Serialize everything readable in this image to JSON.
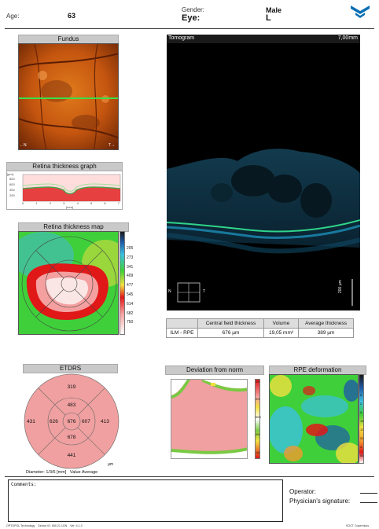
{
  "header": {
    "age_label": "Age:",
    "age_value": "63",
    "gender_label": "Gender:",
    "gender_value": "Male",
    "eye_label": "Eye:",
    "eye_value": "L",
    "logo_icon": "optovue-logo-icon",
    "brand_color": "#0a6fb3"
  },
  "fundus": {
    "title": "Fundus",
    "left_marker": "N",
    "right_marker": "T"
  },
  "tomogram": {
    "title": "Tomogram",
    "length": "7,00mm",
    "left_marker": "N",
    "right_marker": "T",
    "scale_bar": "200 µm"
  },
  "thickness_graph": {
    "title": "Retina thickness graph",
    "ylabel": "[µm]",
    "xlabel": "[mm]",
    "yticks": [
      "800",
      "600",
      "400",
      "200"
    ],
    "xticks": [
      "0",
      "1",
      "2",
      "3",
      "4",
      "5",
      "6",
      "7"
    ]
  },
  "thickness_map": {
    "title": "Retina thickness map",
    "scale_values": [
      "205",
      "273",
      "341",
      "409",
      "477",
      "545",
      "614",
      "682",
      "750"
    ]
  },
  "measurements": {
    "columns": [
      "",
      "Central field thickness",
      "Volume",
      "Average thickness"
    ],
    "rows": [
      {
        "label": "ILM - RPE",
        "central": "676 µm",
        "volume": "19,05 mm³",
        "average": "389 µm"
      }
    ]
  },
  "etdrs": {
    "title": "ETDRS",
    "values": {
      "outer_superior": "319",
      "outer_nasal": "431",
      "outer_temporal": "413",
      "outer_inferior": "441",
      "inner_superior": "483",
      "inner_nasal": "626",
      "inner_temporal": "607",
      "inner_inferior": "678",
      "center": "676"
    },
    "unit": "µm",
    "caption": "Diameter: 1/3/6 [mm]   Value Average",
    "fill_color": "#f0a0a0"
  },
  "deviation": {
    "title": "Deviation from norm",
    "scale_values": [
      "1%",
      "",
      "4%",
      "",
      "80%",
      "",
      "4%",
      "",
      "1%"
    ]
  },
  "rpe": {
    "title": "RPE deformation",
    "scale_values": [
      "",
      "",
      "5",
      "2",
      "9",
      "14",
      "17",
      "21",
      "4",
      "50"
    ]
  },
  "comments": {
    "label": "Comments:"
  },
  "signature": {
    "operator_label": "Operator:",
    "physician_label": "Physician's signature:"
  },
  "footer": {
    "left": "OPTOPOL Technology    Device ID: 060.21.1GN    Ver: 4.1.3",
    "right": "SOCT Copernicus"
  }
}
